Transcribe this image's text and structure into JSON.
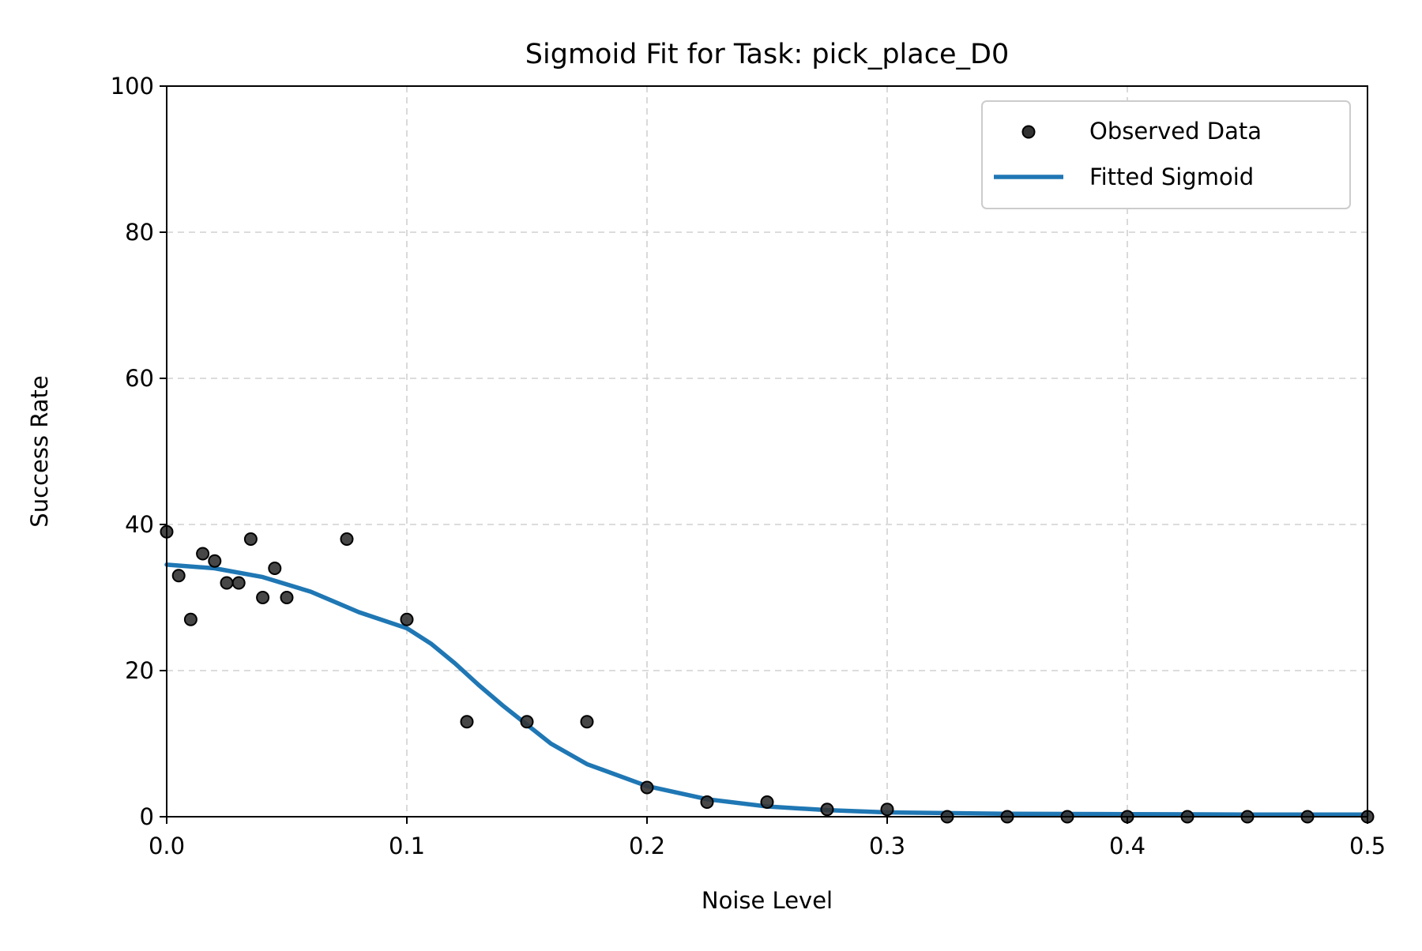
{
  "chart_data": {
    "type": "scatter",
    "title": "Sigmoid Fit for Task: pick_place_D0",
    "xlabel": "Noise Level",
    "ylabel": "Success Rate",
    "xlim": [
      0.0,
      0.5
    ],
    "ylim": [
      0,
      100
    ],
    "xticks": [
      0.0,
      0.1,
      0.2,
      0.3,
      0.4,
      0.5
    ],
    "xtick_labels": [
      "0.0",
      "0.1",
      "0.2",
      "0.3",
      "0.4",
      "0.5"
    ],
    "yticks": [
      0,
      20,
      40,
      60,
      80,
      100
    ],
    "ytick_labels": [
      "0",
      "20",
      "40",
      "60",
      "80",
      "100"
    ],
    "grid": true,
    "legend_position": "top-right",
    "series": [
      {
        "name": "Observed Data",
        "kind": "scatter",
        "color": "#333333",
        "x": [
          0.0,
          0.005,
          0.01,
          0.015,
          0.02,
          0.025,
          0.03,
          0.035,
          0.04,
          0.045,
          0.05,
          0.075,
          0.1,
          0.125,
          0.15,
          0.175,
          0.2,
          0.225,
          0.25,
          0.275,
          0.3,
          0.325,
          0.35,
          0.375,
          0.4,
          0.425,
          0.45,
          0.475,
          0.5
        ],
        "y": [
          39,
          33,
          27,
          36,
          35,
          32,
          32,
          38,
          30,
          34,
          30,
          38,
          27,
          13,
          13,
          13,
          4,
          2,
          2,
          1,
          1,
          0,
          0,
          0,
          0,
          0,
          0,
          0,
          0
        ]
      },
      {
        "name": "Fitted Sigmoid",
        "kind": "line",
        "color": "#1f77b4",
        "x": [
          0.0,
          0.02,
          0.04,
          0.06,
          0.08,
          0.1,
          0.11,
          0.12,
          0.13,
          0.14,
          0.15,
          0.16,
          0.175,
          0.2,
          0.225,
          0.25,
          0.275,
          0.3,
          0.35,
          0.4,
          0.45,
          0.5
        ],
        "y": [
          34.5,
          34.0,
          32.8,
          30.8,
          28.0,
          25.8,
          23.7,
          21.0,
          18.0,
          15.2,
          12.6,
          10.0,
          7.2,
          4.2,
          2.4,
          1.4,
          0.9,
          0.6,
          0.4,
          0.35,
          0.3,
          0.3
        ]
      }
    ]
  }
}
